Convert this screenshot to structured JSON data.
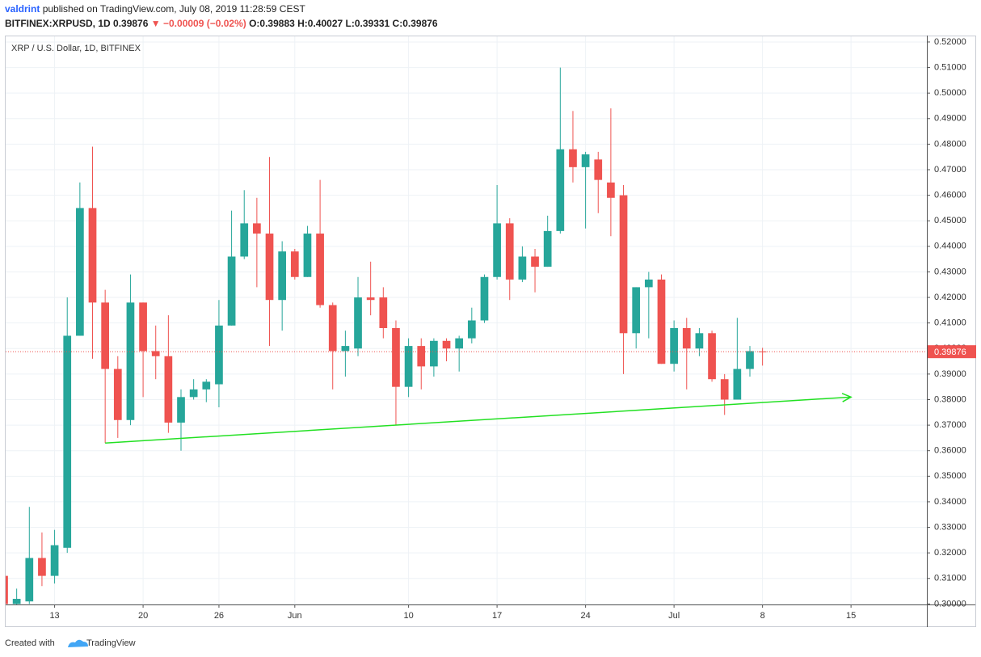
{
  "header": {
    "author": "valdrint",
    "published": "published on TradingView.com, July 08, 2019 11:28:59 CEST",
    "symbol": "BITFINEX:XRPUSD, 1D",
    "last": "0.39876",
    "arrow": "▼",
    "change": "−0.00009 (−0.02%)",
    "ohlc": "O:0.39883 H:0.40027 L:0.39331 C:0.39876"
  },
  "footer": {
    "created": "Created with",
    "brand": "TradingView"
  },
  "chart_data": {
    "type": "candlestick",
    "title": "XRP / U.S. Dollar, 1D, BITFINEX",
    "x": [
      "2019-05-09",
      "2019-05-10",
      "2019-05-11",
      "2019-05-12",
      "2019-05-13",
      "2019-05-14",
      "2019-05-15",
      "2019-05-16",
      "2019-05-17",
      "2019-05-18",
      "2019-05-19",
      "2019-05-20",
      "2019-05-21",
      "2019-05-22",
      "2019-05-23",
      "2019-05-24",
      "2019-05-25",
      "2019-05-26",
      "2019-05-27",
      "2019-05-28",
      "2019-05-29",
      "2019-05-30",
      "2019-05-31",
      "2019-06-01",
      "2019-06-02",
      "2019-06-03",
      "2019-06-04",
      "2019-06-05",
      "2019-06-06",
      "2019-06-07",
      "2019-06-08",
      "2019-06-09",
      "2019-06-10",
      "2019-06-11",
      "2019-06-12",
      "2019-06-13",
      "2019-06-14",
      "2019-06-15",
      "2019-06-16",
      "2019-06-17",
      "2019-06-18",
      "2019-06-19",
      "2019-06-20",
      "2019-06-21",
      "2019-06-22",
      "2019-06-23",
      "2019-06-24",
      "2019-06-25",
      "2019-06-26",
      "2019-06-27",
      "2019-06-28",
      "2019-06-29",
      "2019-06-30",
      "2019-07-01",
      "2019-07-02",
      "2019-07-03",
      "2019-07-04",
      "2019-07-05",
      "2019-07-06",
      "2019-07-07",
      "2019-07-08"
    ],
    "open": [
      0.311,
      0.3,
      0.301,
      0.318,
      0.311,
      0.322,
      0.405,
      0.455,
      0.418,
      0.392,
      0.372,
      0.418,
      0.399,
      0.397,
      0.371,
      0.381,
      0.384,
      0.386,
      0.409,
      0.436,
      0.449,
      0.445,
      0.419,
      0.438,
      0.428,
      0.445,
      0.417,
      0.399,
      0.4,
      0.42,
      0.42,
      0.408,
      0.385,
      0.401,
      0.393,
      0.403,
      0.4,
      0.404,
      0.411,
      0.428,
      0.449,
      0.427,
      0.436,
      0.432,
      0.446,
      0.478,
      0.471,
      0.474,
      0.465,
      0.46,
      0.406,
      0.424,
      0.427,
      0.394,
      0.408,
      0.4,
      0.406,
      0.388,
      0.38,
      0.392,
      0.39883
    ],
    "high": [
      0.312,
      0.306,
      0.338,
      0.328,
      0.329,
      0.42,
      0.465,
      0.479,
      0.423,
      0.397,
      0.429,
      0.418,
      0.409,
      0.413,
      0.384,
      0.388,
      0.388,
      0.419,
      0.454,
      0.462,
      0.459,
      0.475,
      0.442,
      0.439,
      0.448,
      0.466,
      0.418,
      0.407,
      0.428,
      0.434,
      0.424,
      0.411,
      0.404,
      0.404,
      0.404,
      0.404,
      0.405,
      0.416,
      0.429,
      0.464,
      0.451,
      0.44,
      0.439,
      0.452,
      0.51,
      0.493,
      0.477,
      0.477,
      0.494,
      0.464,
      0.424,
      0.43,
      0.429,
      0.411,
      0.412,
      0.408,
      0.407,
      0.39,
      0.412,
      0.401,
      0.40027
    ],
    "low": [
      0.299,
      0.298,
      0.3,
      0.307,
      0.308,
      0.32,
      0.405,
      0.396,
      0.363,
      0.365,
      0.37,
      0.381,
      0.388,
      0.367,
      0.36,
      0.38,
      0.379,
      0.377,
      0.409,
      0.435,
      0.424,
      0.401,
      0.407,
      0.427,
      0.428,
      0.416,
      0.384,
      0.389,
      0.397,
      0.413,
      0.404,
      0.37,
      0.381,
      0.384,
      0.389,
      0.395,
      0.391,
      0.402,
      0.41,
      0.427,
      0.419,
      0.426,
      0.422,
      0.432,
      0.445,
      0.465,
      0.447,
      0.453,
      0.444,
      0.39,
      0.4,
      0.404,
      0.394,
      0.391,
      0.384,
      0.397,
      0.387,
      0.374,
      0.38,
      0.389,
      0.39331
    ],
    "close": [
      0.3,
      0.302,
      0.318,
      0.311,
      0.323,
      0.405,
      0.455,
      0.418,
      0.392,
      0.372,
      0.418,
      0.399,
      0.397,
      0.371,
      0.381,
      0.384,
      0.387,
      0.409,
      0.436,
      0.449,
      0.445,
      0.419,
      0.438,
      0.428,
      0.445,
      0.417,
      0.399,
      0.401,
      0.42,
      0.419,
      0.408,
      0.385,
      0.401,
      0.393,
      0.403,
      0.4,
      0.404,
      0.411,
      0.428,
      0.449,
      0.427,
      0.436,
      0.432,
      0.446,
      0.478,
      0.471,
      0.476,
      0.466,
      0.459,
      0.406,
      0.424,
      0.427,
      0.394,
      0.408,
      0.4,
      0.406,
      0.388,
      0.38,
      0.392,
      0.399,
      0.39876
    ],
    "up_color": "#26a69a",
    "down_color": "#ef5350",
    "xlim": [
      "2019-05-09",
      "2019-07-21"
    ],
    "xticks": [
      {
        "value": "2019-05-13",
        "label": "13"
      },
      {
        "value": "2019-05-20",
        "label": "20"
      },
      {
        "value": "2019-05-26",
        "label": "26"
      },
      {
        "value": "2019-06-01",
        "label": "Jun"
      },
      {
        "value": "2019-06-10",
        "label": "10"
      },
      {
        "value": "2019-06-17",
        "label": "17"
      },
      {
        "value": "2019-06-24",
        "label": "24"
      },
      {
        "value": "2019-07-01",
        "label": "Jul"
      },
      {
        "value": "2019-07-08",
        "label": "8"
      },
      {
        "value": "2019-07-15",
        "label": "15"
      }
    ],
    "ylim": [
      0.2998,
      0.5222
    ],
    "yticks": [
      {
        "value": 0.3,
        "label": "0.30000"
      },
      {
        "value": 0.31,
        "label": "0.31000"
      },
      {
        "value": 0.32,
        "label": "0.32000"
      },
      {
        "value": 0.33,
        "label": "0.33000"
      },
      {
        "value": 0.34,
        "label": "0.34000"
      },
      {
        "value": 0.35,
        "label": "0.35000"
      },
      {
        "value": 0.36,
        "label": "0.36000"
      },
      {
        "value": 0.37,
        "label": "0.37000"
      },
      {
        "value": 0.38,
        "label": "0.38000"
      },
      {
        "value": 0.39,
        "label": "0.39000"
      },
      {
        "value": 0.4,
        "label": "0.40000"
      },
      {
        "value": 0.41,
        "label": "0.41000"
      },
      {
        "value": 0.42,
        "label": "0.42000"
      },
      {
        "value": 0.43,
        "label": "0.43000"
      },
      {
        "value": 0.44,
        "label": "0.44000"
      },
      {
        "value": 0.45,
        "label": "0.45000"
      },
      {
        "value": 0.46,
        "label": "0.46000"
      },
      {
        "value": 0.47,
        "label": "0.47000"
      },
      {
        "value": 0.48,
        "label": "0.48000"
      },
      {
        "value": 0.49,
        "label": "0.49000"
      },
      {
        "value": 0.5,
        "label": "0.50000"
      },
      {
        "value": 0.51,
        "label": "0.51000"
      },
      {
        "value": 0.52,
        "label": "0.52000"
      }
    ],
    "grid": true,
    "last_price": {
      "value": 0.39876,
      "label": "0.39876",
      "color": "#ef5350"
    },
    "trendline": {
      "x": [
        "2019-05-17",
        "2019-07-15"
      ],
      "values": [
        0.363,
        0.381
      ],
      "color": "#22e022"
    }
  }
}
